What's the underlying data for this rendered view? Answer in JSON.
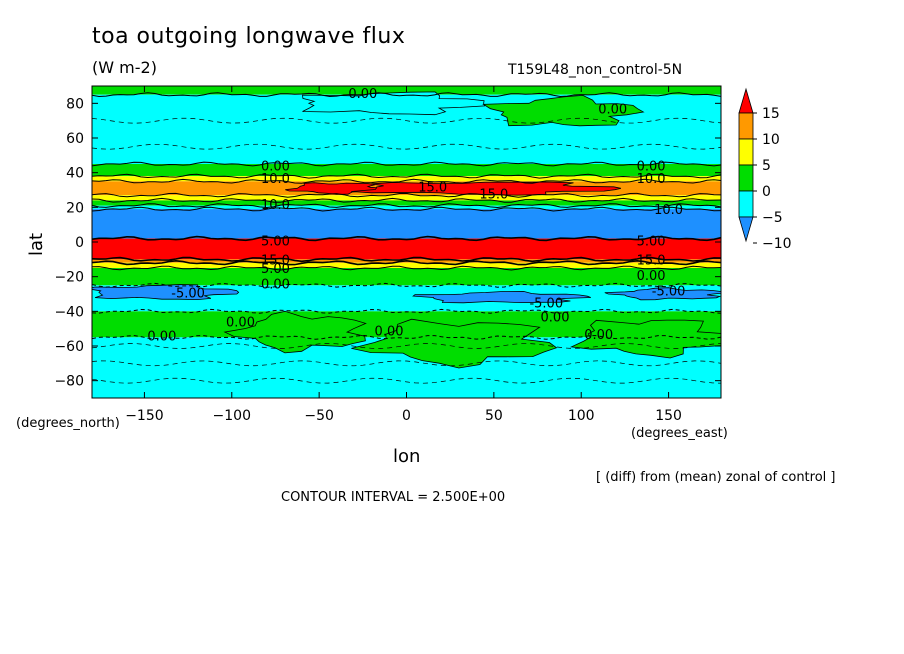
{
  "chart_data": {
    "type": "heatmap",
    "title": "toa outgoing longwave flux",
    "units": "(W m-2)",
    "run_label": "T159L48_non_control-5N",
    "xlabel": "lon",
    "ylabel": "lat",
    "x_units": "(degrees_east)",
    "y_units": "(degrees_north)",
    "xlim": [
      -180,
      180
    ],
    "ylim": [
      -90,
      90
    ],
    "x_ticks": [
      -150,
      -100,
      -50,
      0,
      50,
      100,
      150
    ],
    "y_ticks": [
      80,
      60,
      40,
      20,
      0,
      -20,
      -40,
      -60,
      -80
    ],
    "diff_note": "[ (diff) from (mean) zonal of control ]",
    "contour_interval_text": "CONTOUR INTERVAL = 2.500E+00",
    "colorbar": {
      "levels": [
        -10,
        -5,
        0,
        5,
        10,
        15
      ],
      "labels": [
        "15",
        "10",
        "5",
        "0",
        "-5",
        "-10"
      ],
      "colors": [
        "#1e90ff",
        "#00ffff",
        "#00dd00",
        "#ffff00",
        "#ff9900",
        "#ff0000"
      ]
    },
    "bands": [
      {
        "lat_from": 90,
        "lat_to": 85,
        "color": "#00dd00"
      },
      {
        "lat_from": 85,
        "lat_to": 45,
        "color": "#00ffff"
      },
      {
        "lat_from": 45,
        "lat_to": 38,
        "color": "#00dd00"
      },
      {
        "lat_from": 38,
        "lat_to": 35,
        "color": "#ffff00"
      },
      {
        "lat_from": 35,
        "lat_to": 27,
        "color": "#ff9900"
      },
      {
        "lat_from": 27,
        "lat_to": 24,
        "color": "#ffff00"
      },
      {
        "lat_from": 24,
        "lat_to": 21,
        "color": "#00dd00"
      },
      {
        "lat_from": 21,
        "lat_to": 19,
        "color": "#00ffff"
      },
      {
        "lat_from": 19,
        "lat_to": 2,
        "color": "#1e90ff"
      },
      {
        "lat_from": 2,
        "lat_to": -10,
        "color": "#ff0000"
      },
      {
        "lat_from": -10,
        "lat_to": -12,
        "color": "#ff9900"
      },
      {
        "lat_from": -12,
        "lat_to": -15,
        "color": "#ffff00"
      },
      {
        "lat_from": -15,
        "lat_to": -25,
        "color": "#00dd00"
      },
      {
        "lat_from": -25,
        "lat_to": -40,
        "color": "#00ffff"
      },
      {
        "lat_from": -40,
        "lat_to": -55,
        "color": "#00dd00"
      },
      {
        "lat_from": -55,
        "lat_to": -90,
        "color": "#00ffff"
      }
    ],
    "blobs": [
      {
        "lon": -40,
        "lat": 31,
        "rlon": 25,
        "rlat": 3,
        "color": "#ff0000"
      },
      {
        "lon": 45,
        "lat": 31,
        "rlon": 70,
        "rlat": 3.5,
        "color": "#ff0000"
      },
      {
        "lon": -140,
        "lat": -29,
        "rlon": 40,
        "rlat": 4,
        "color": "#1e90ff"
      },
      {
        "lon": 55,
        "lat": -32,
        "rlon": 45,
        "rlat": 3,
        "color": "#1e90ff"
      },
      {
        "lon": 150,
        "lat": -30,
        "rlon": 30,
        "rlat": 3,
        "color": "#1e90ff"
      },
      {
        "lon": -60,
        "lat": -52,
        "rlon": 35,
        "rlat": 10,
        "color": "#00dd00"
      },
      {
        "lon": 30,
        "lat": -58,
        "rlon": 50,
        "rlat": 12,
        "color": "#00dd00"
      },
      {
        "lon": 140,
        "lat": -55,
        "rlon": 40,
        "rlat": 10,
        "color": "#00dd00"
      },
      {
        "lon": -10,
        "lat": 80,
        "rlon": 50,
        "rlat": 6,
        "color": "#00ffff"
      },
      {
        "lon": 90,
        "lat": 75,
        "rlon": 40,
        "rlat": 8,
        "color": "#00dd00"
      }
    ],
    "annotations": [
      {
        "text": "0.00",
        "lon": -25,
        "lat": 86
      },
      {
        "text": "0.00",
        "lon": 118,
        "lat": 77
      },
      {
        "text": "0.00",
        "lon": -75,
        "lat": 44
      },
      {
        "text": "0.00",
        "lon": 140,
        "lat": 44
      },
      {
        "text": "10.0",
        "lon": -75,
        "lat": 37
      },
      {
        "text": "10.0",
        "lon": 140,
        "lat": 37
      },
      {
        "text": "15.0",
        "lon": 15,
        "lat": 32
      },
      {
        "text": "15.0",
        "lon": 50,
        "lat": 28
      },
      {
        "text": "10.0",
        "lon": -75,
        "lat": 22
      },
      {
        "text": "10.0",
        "lon": 150,
        "lat": 19
      },
      {
        "text": "5.00",
        "lon": -75,
        "lat": 1
      },
      {
        "text": "5.00",
        "lon": 140,
        "lat": 1
      },
      {
        "text": "15.0",
        "lon": -75,
        "lat": -10
      },
      {
        "text": "15.0",
        "lon": 140,
        "lat": -10
      },
      {
        "text": "5.00",
        "lon": -75,
        "lat": -15
      },
      {
        "text": "0.00",
        "lon": 140,
        "lat": -19
      },
      {
        "text": "0.00",
        "lon": -75,
        "lat": -24
      },
      {
        "text": "-5.00",
        "lon": -125,
        "lat": -29
      },
      {
        "text": "-5.00",
        "lon": 150,
        "lat": -28
      },
      {
        "text": "-5.00",
        "lon": 80,
        "lat": -35
      },
      {
        "text": "0.00",
        "lon": 85,
        "lat": -43
      },
      {
        "text": "0.00",
        "lon": -95,
        "lat": -46
      },
      {
        "text": "0.00",
        "lon": -10,
        "lat": -51
      },
      {
        "text": "0.00",
        "lon": -140,
        "lat": -54
      },
      {
        "text": "0.00",
        "lon": 110,
        "lat": -53
      }
    ]
  }
}
